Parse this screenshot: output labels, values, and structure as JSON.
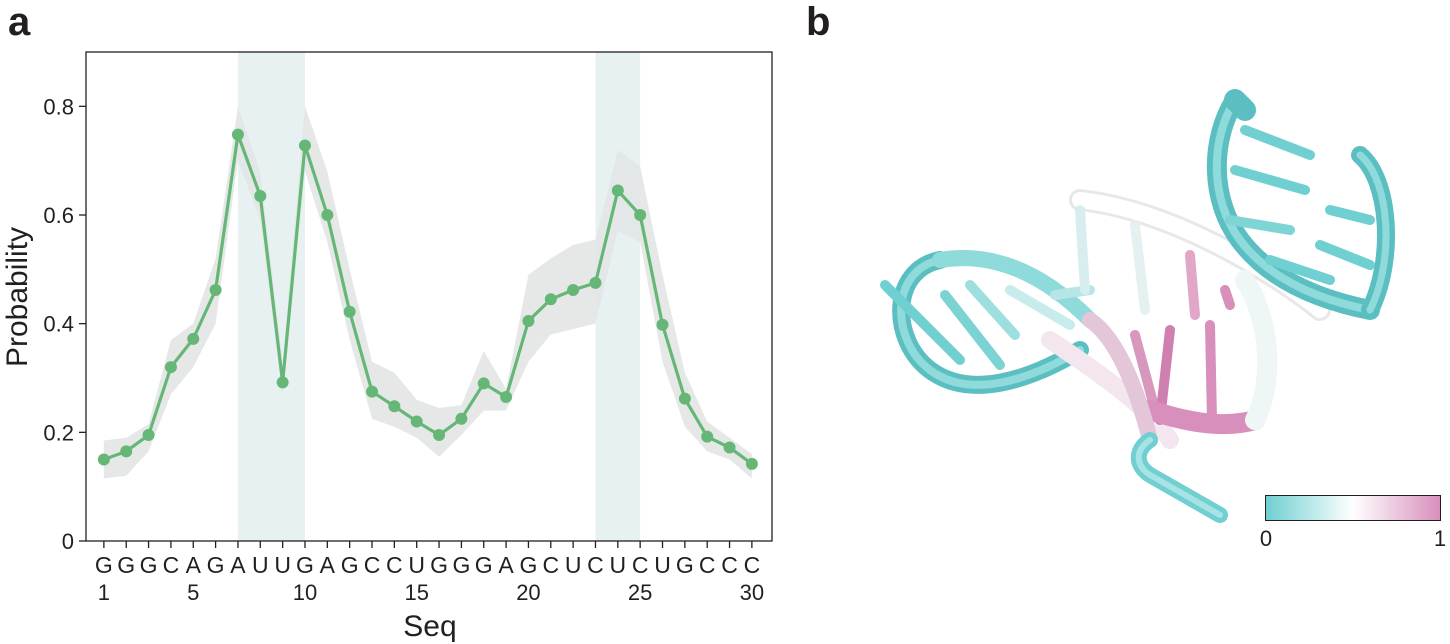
{
  "panels": {
    "a": "a",
    "b": "b"
  },
  "chart_data": {
    "type": "line",
    "xlabel": "Seq",
    "ylabel": "Probability",
    "ylim": [
      0,
      0.9
    ],
    "xlim": [
      0.2,
      30.9
    ],
    "y_ticks": [
      "0",
      "0.2",
      "0.4",
      "0.6",
      "0.8"
    ],
    "y_tick_values": [
      0,
      0.2,
      0.4,
      0.6,
      0.8
    ],
    "x_tick_labels": [
      "1",
      "5",
      "10",
      "15",
      "20",
      "25",
      "30"
    ],
    "x_tick_values": [
      1,
      5,
      10,
      15,
      20,
      25,
      30
    ],
    "sequence": [
      "G",
      "G",
      "G",
      "C",
      "A",
      "G",
      "A",
      "U",
      "U",
      "G",
      "A",
      "G",
      "C",
      "C",
      "U",
      "G",
      "G",
      "G",
      "A",
      "G",
      "C",
      "U",
      "C",
      "U",
      "C",
      "U",
      "G",
      "C",
      "C",
      "C"
    ],
    "x": [
      1,
      2,
      3,
      4,
      5,
      6,
      7,
      8,
      9,
      10,
      11,
      12,
      13,
      14,
      15,
      16,
      17,
      18,
      19,
      20,
      21,
      22,
      23,
      24,
      25,
      26,
      27,
      28,
      29,
      30
    ],
    "values": [
      0.15,
      0.165,
      0.195,
      0.32,
      0.372,
      0.462,
      0.748,
      0.635,
      0.292,
      0.728,
      0.6,
      0.422,
      0.275,
      0.248,
      0.22,
      0.195,
      0.225,
      0.29,
      0.265,
      0.405,
      0.445,
      0.462,
      0.475,
      0.645,
      0.6,
      0.398,
      0.262,
      0.192,
      0.172,
      0.142
    ],
    "band_upper": [
      0.185,
      0.19,
      0.215,
      0.37,
      0.4,
      0.52,
      0.8,
      0.68,
      0.33,
      0.8,
      0.68,
      0.5,
      0.33,
      0.31,
      0.26,
      0.245,
      0.25,
      0.35,
      0.28,
      0.49,
      0.52,
      0.545,
      0.555,
      0.72,
      0.69,
      0.49,
      0.31,
      0.22,
      0.19,
      0.16
    ],
    "band_lower": [
      0.115,
      0.12,
      0.165,
      0.27,
      0.32,
      0.4,
      0.7,
      0.59,
      0.265,
      0.68,
      0.55,
      0.37,
      0.225,
      0.21,
      0.19,
      0.155,
      0.195,
      0.24,
      0.24,
      0.33,
      0.38,
      0.39,
      0.4,
      0.57,
      0.55,
      0.33,
      0.21,
      0.165,
      0.15,
      0.115
    ],
    "highlight_ranges": [
      [
        7,
        10
      ],
      [
        23,
        25
      ]
    ],
    "colors": {
      "line": "#66b777",
      "band": "#e3e6e6",
      "highlight": "#e8f1f2",
      "text": "#231f20"
    }
  },
  "colorbar": {
    "min_label": "0",
    "max_label": "1",
    "colors": [
      "#6fcfd1",
      "#ffffff",
      "#d88fbc"
    ]
  }
}
